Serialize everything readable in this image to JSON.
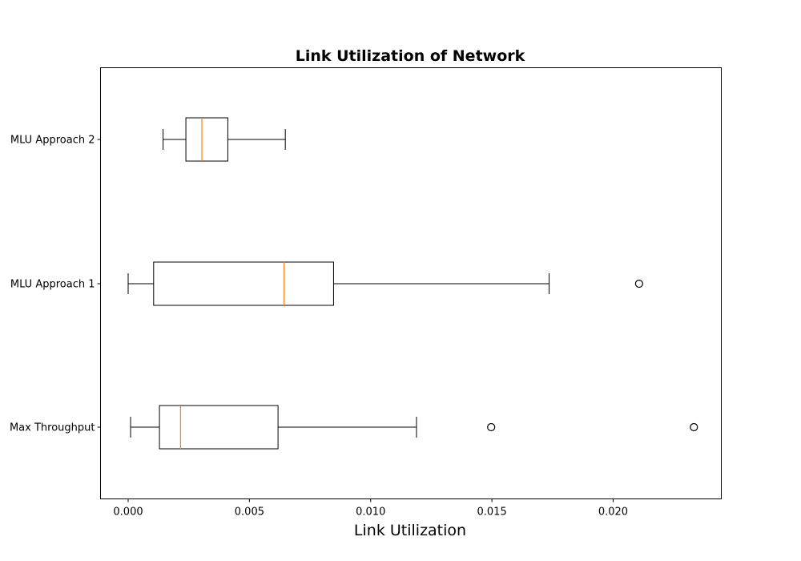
{
  "chart_data": {
    "type": "boxplot",
    "orientation": "horizontal",
    "title": "Link Utilization of Network",
    "xlabel": "Link Utilization",
    "ylabel": "",
    "xlim": [
      -0.00114,
      0.02446
    ],
    "xticks": [
      "0.000",
      "0.005",
      "0.010",
      "0.015",
      "0.020"
    ],
    "xtick_values": [
      0.0,
      0.005,
      0.01,
      0.015,
      0.02
    ],
    "categories": [
      "MLU Approach 2",
      "MLU Approach 1",
      "Max Throughput"
    ],
    "series": [
      {
        "category": "MLU Approach 2",
        "whisker_low": 0.00144,
        "q1": 0.00238,
        "median": 0.00304,
        "q3": 0.00411,
        "whisker_high": 0.00648,
        "outliers": []
      },
      {
        "category": "MLU Approach 1",
        "whisker_low": 0.0,
        "q1": 0.00105,
        "median": 0.00643,
        "q3": 0.00847,
        "whisker_high": 0.01736,
        "outliers": [
          0.02107
        ]
      },
      {
        "category": "Max Throughput",
        "whisker_low": 0.0001,
        "q1": 0.00129,
        "median": 0.00216,
        "q3": 0.00618,
        "whisker_high": 0.01189,
        "outliers": [
          0.01497,
          0.02333
        ]
      }
    ],
    "grid": false,
    "colors": {
      "box": "#000000",
      "median": "#ff7f0e",
      "background": "#ffffff"
    }
  }
}
